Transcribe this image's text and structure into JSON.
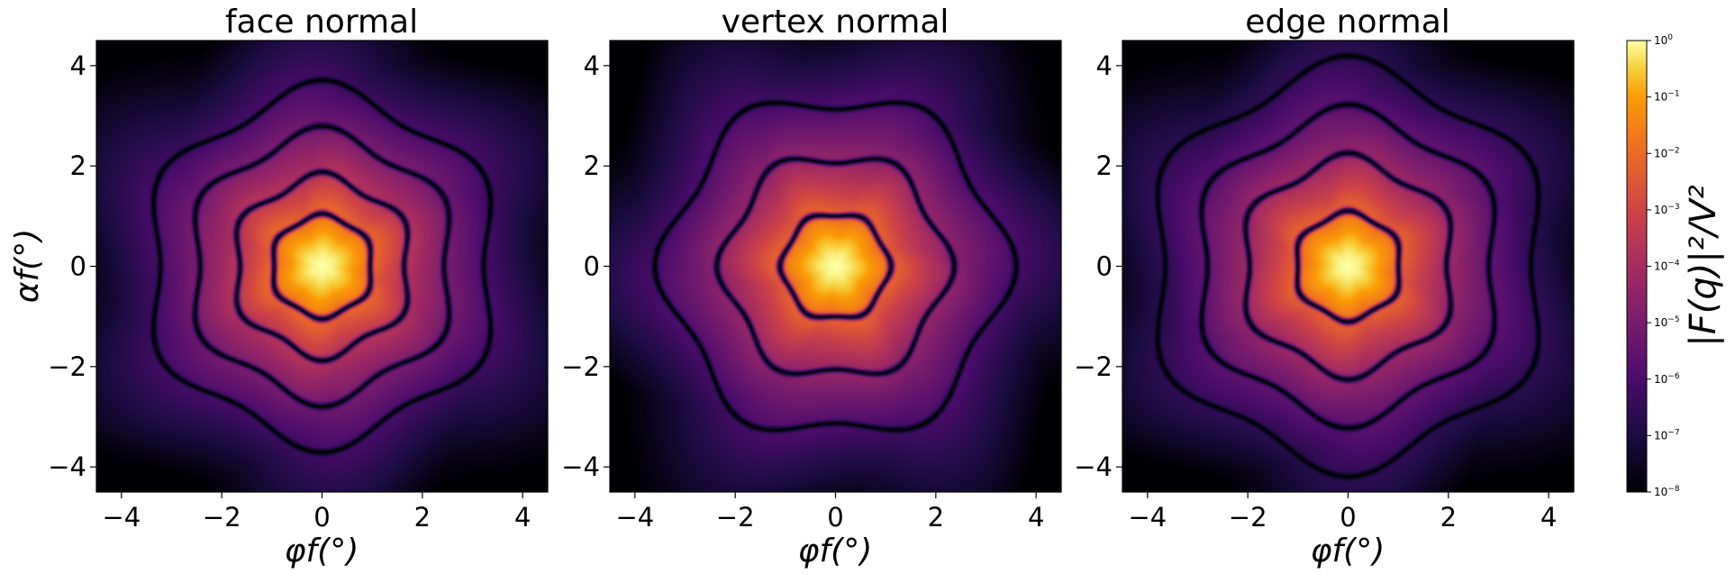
{
  "chart_data": [
    {
      "type": "heatmap",
      "title": "face normal",
      "xlabel": "φf(°)",
      "ylabel": "αf(°)",
      "xlim": [
        -4.5,
        4.5
      ],
      "ylim": [
        -4.5,
        4.5
      ],
      "xticks": [
        "−4",
        "−2",
        "0",
        "2",
        "4"
      ],
      "yticks": [
        "−4",
        "−2",
        "0",
        "2",
        "4"
      ],
      "symmetry": 6,
      "orientation_deg": 0,
      "zero_rings_deg": [
        1.0,
        1.75,
        2.6,
        3.45
      ]
    },
    {
      "type": "heatmap",
      "title": "vertex normal",
      "xlabel": "φf(°)",
      "ylabel": "",
      "xlim": [
        -4.5,
        4.5
      ],
      "ylim": [
        -4.5,
        4.5
      ],
      "xticks": [
        "−4",
        "−2",
        "0",
        "2",
        "4"
      ],
      "yticks": [
        "−4",
        "−2",
        "0",
        "2",
        "4"
      ],
      "symmetry": 6,
      "orientation_deg": 30,
      "zero_rings_deg": [
        1.05,
        2.2,
        3.35
      ]
    },
    {
      "type": "heatmap",
      "title": "edge normal",
      "xlabel": "φf(°)",
      "ylabel": "",
      "xlim": [
        -4.5,
        4.5
      ],
      "ylim": [
        -4.5,
        4.5
      ],
      "xticks": [
        "−4",
        "−2",
        "0",
        "2",
        "4"
      ],
      "yticks": [
        "−4",
        "−2",
        "0",
        "2",
        "4"
      ],
      "symmetry": 6,
      "orientation_deg": 0,
      "zero_rings_deg": [
        1.05,
        2.1,
        3.0,
        3.9
      ]
    }
  ],
  "colorbar": {
    "label": "|F(q)|²/V²",
    "scale": "log",
    "range": [
      1e-08,
      1
    ],
    "ticks": [
      {
        "base": "10",
        "exp": "0"
      },
      {
        "base": "10",
        "exp": "−1"
      },
      {
        "base": "10",
        "exp": "−2"
      },
      {
        "base": "10",
        "exp": "−3"
      },
      {
        "base": "10",
        "exp": "−4"
      },
      {
        "base": "10",
        "exp": "−5"
      },
      {
        "base": "10",
        "exp": "−6"
      },
      {
        "base": "10",
        "exp": "−7"
      },
      {
        "base": "10",
        "exp": "−8"
      }
    ],
    "colormap": "inferno"
  }
}
